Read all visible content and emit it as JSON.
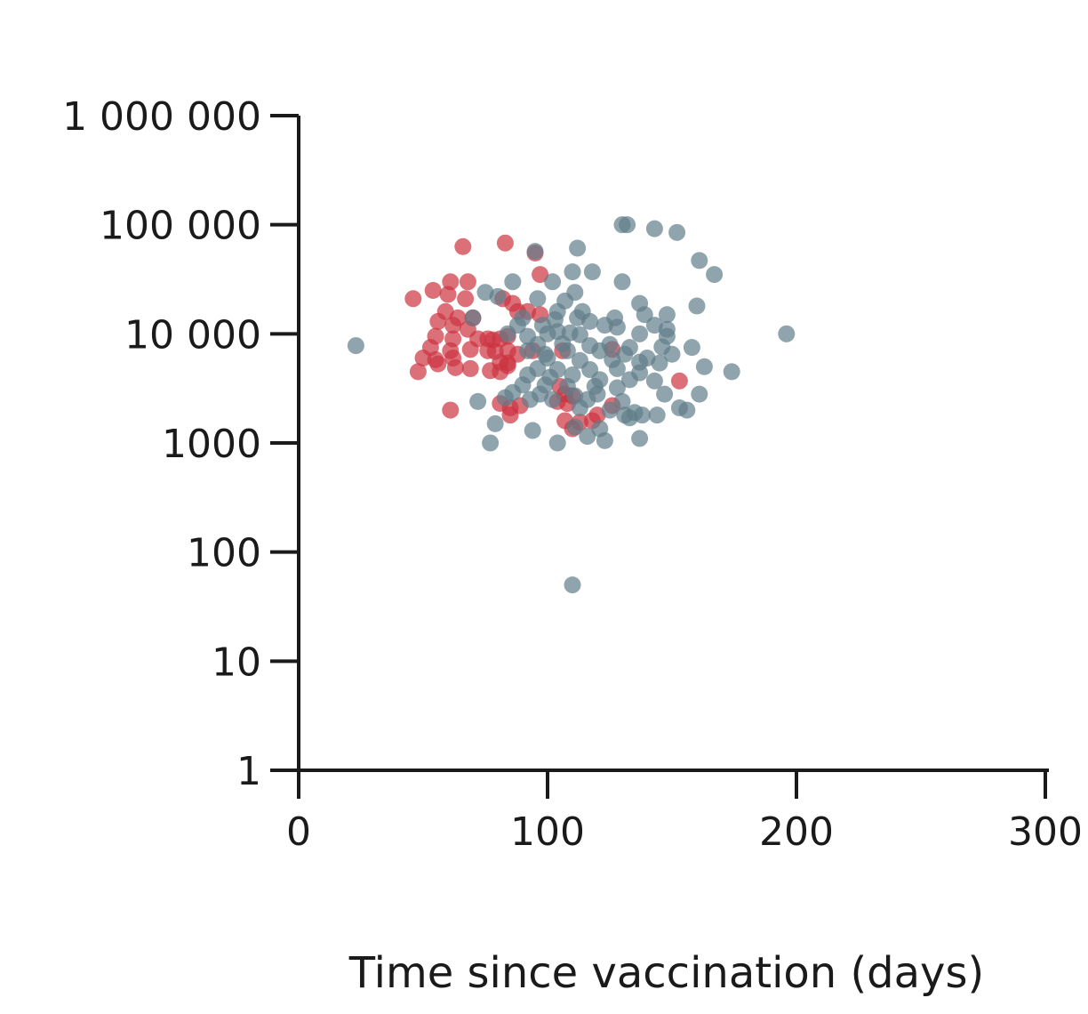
{
  "chart_data": {
    "type": "scatter",
    "title": "",
    "xlabel": "Time since vaccination (days)",
    "ylabel": "",
    "x_scale": "linear",
    "y_scale": "log",
    "xlim": [
      0,
      300
    ],
    "ylim": [
      1,
      1000000
    ],
    "x_ticks": [
      0,
      100,
      200,
      300
    ],
    "x_tick_labels": [
      "0",
      "100",
      "200",
      "300"
    ],
    "y_ticks": [
      1,
      10,
      100,
      1000,
      10000,
      100000,
      1000000
    ],
    "y_tick_labels": [
      "1",
      "10",
      "100",
      "1000",
      "10 000",
      "100 000",
      "1 000 000"
    ],
    "grid": false,
    "legend": "none",
    "marker_opacity": 0.7,
    "series": [
      {
        "color": "#CC3340",
        "points": [
          [
            66,
            63000
          ],
          [
            83,
            68000
          ],
          [
            95,
            55000
          ],
          [
            97,
            35000
          ],
          [
            61,
            30000
          ],
          [
            68,
            30000
          ],
          [
            46,
            21000
          ],
          [
            54,
            25000
          ],
          [
            60,
            23000
          ],
          [
            67,
            21000
          ],
          [
            82,
            21000
          ],
          [
            59,
            16000
          ],
          [
            64,
            14000
          ],
          [
            70,
            14000
          ],
          [
            86,
            19000
          ],
          [
            88,
            16000
          ],
          [
            92,
            16000
          ],
          [
            97,
            15000
          ],
          [
            56,
            13000
          ],
          [
            62,
            12000
          ],
          [
            68,
            11000
          ],
          [
            55,
            9500
          ],
          [
            62,
            9000
          ],
          [
            72,
            9000
          ],
          [
            76,
            9000
          ],
          [
            78,
            8800
          ],
          [
            81,
            9000
          ],
          [
            84,
            9500
          ],
          [
            53,
            7500
          ],
          [
            61,
            7000
          ],
          [
            69,
            7200
          ],
          [
            76,
            7000
          ],
          [
            79,
            6900
          ],
          [
            84,
            7000
          ],
          [
            88,
            6500
          ],
          [
            94,
            7000
          ],
          [
            106,
            7000
          ],
          [
            126,
            7200
          ],
          [
            50,
            6000
          ],
          [
            55,
            5800
          ],
          [
            62,
            6000
          ],
          [
            81,
            5500
          ],
          [
            84,
            5400
          ],
          [
            48,
            4500
          ],
          [
            56,
            5300
          ],
          [
            63,
            4900
          ],
          [
            69,
            4800
          ],
          [
            77,
            4600
          ],
          [
            81,
            4500
          ],
          [
            84,
            5100
          ],
          [
            153,
            3700
          ],
          [
            105,
            3300
          ],
          [
            107,
            2800
          ],
          [
            110,
            2700
          ],
          [
            81,
            2300
          ],
          [
            85,
            2100
          ],
          [
            89,
            2200
          ],
          [
            104,
            2400
          ],
          [
            108,
            2300
          ],
          [
            126,
            2200
          ],
          [
            61,
            2000
          ],
          [
            85,
            1800
          ],
          [
            120,
            1800
          ],
          [
            107,
            1600
          ],
          [
            113,
            1550
          ],
          [
            118,
            1600
          ],
          [
            110,
            1350
          ]
        ]
      },
      {
        "color": "#5F7D89",
        "points": [
          [
            23,
            7800
          ],
          [
            130,
            100000
          ],
          [
            132,
            100000
          ],
          [
            143,
            92000
          ],
          [
            152,
            85000
          ],
          [
            112,
            61000
          ],
          [
            95,
            57000
          ],
          [
            161,
            47000
          ],
          [
            110,
            37000
          ],
          [
            118,
            37000
          ],
          [
            167,
            35000
          ],
          [
            86,
            30000
          ],
          [
            102,
            30000
          ],
          [
            130,
            30000
          ],
          [
            75,
            24000
          ],
          [
            111,
            24000
          ],
          [
            80,
            22000
          ],
          [
            96,
            21000
          ],
          [
            107,
            20000
          ],
          [
            137,
            19000
          ],
          [
            160,
            18000
          ],
          [
            104,
            16000
          ],
          [
            114,
            16000
          ],
          [
            127,
            14000
          ],
          [
            139,
            15000
          ],
          [
            148,
            15000
          ],
          [
            70,
            14000
          ],
          [
            90,
            14000
          ],
          [
            103,
            13500
          ],
          [
            112,
            14000
          ],
          [
            117,
            13000
          ],
          [
            123,
            12000
          ],
          [
            143,
            12000
          ],
          [
            88,
            12000
          ],
          [
            98,
            12000
          ],
          [
            128,
            11500
          ],
          [
            137,
            10000
          ],
          [
            148,
            11000
          ],
          [
            84,
            10000
          ],
          [
            92,
            9500
          ],
          [
            100,
            10000
          ],
          [
            104,
            10500
          ],
          [
            113,
            9800
          ],
          [
            148,
            9500
          ],
          [
            109,
            10200
          ],
          [
            96,
            8000
          ],
          [
            106,
            8100
          ],
          [
            117,
            7800
          ],
          [
            125,
            8000
          ],
          [
            133,
            7500
          ],
          [
            146,
            7600
          ],
          [
            158,
            7500
          ],
          [
            92,
            7000
          ],
          [
            99,
            6500
          ],
          [
            108,
            7000
          ],
          [
            121,
            7000
          ],
          [
            131,
            6500
          ],
          [
            140,
            6000
          ],
          [
            150,
            6500
          ],
          [
            196,
            10000
          ],
          [
            100,
            6000
          ],
          [
            113,
            5700
          ],
          [
            126,
            5800
          ],
          [
            137,
            5500
          ],
          [
            145,
            5400
          ],
          [
            163,
            5000
          ],
          [
            174,
            4500
          ],
          [
            96,
            4800
          ],
          [
            104,
            4700
          ],
          [
            117,
            4700
          ],
          [
            128,
            4800
          ],
          [
            137,
            4400
          ],
          [
            92,
            4200
          ],
          [
            101,
            4000
          ],
          [
            110,
            4200
          ],
          [
            121,
            3800
          ],
          [
            133,
            3800
          ],
          [
            143,
            3700
          ],
          [
            90,
            3400
          ],
          [
            99,
            3400
          ],
          [
            108,
            3300
          ],
          [
            119,
            3300
          ],
          [
            128,
            3200
          ],
          [
            86,
            2900
          ],
          [
            97,
            2800
          ],
          [
            111,
            2700
          ],
          [
            120,
            2800
          ],
          [
            147,
            2800
          ],
          [
            161,
            2800
          ],
          [
            72,
            2400
          ],
          [
            83,
            2600
          ],
          [
            93,
            2500
          ],
          [
            102,
            2500
          ],
          [
            116,
            2500
          ],
          [
            130,
            2400
          ],
          [
            113,
            2100
          ],
          [
            125,
            2000
          ],
          [
            135,
            1900
          ],
          [
            153,
            2100
          ],
          [
            156,
            2000
          ],
          [
            131,
            1800
          ],
          [
            138,
            1800
          ],
          [
            144,
            1800
          ],
          [
            79,
            1500
          ],
          [
            133,
            1700
          ],
          [
            94,
            1300
          ],
          [
            111,
            1400
          ],
          [
            121,
            1350
          ],
          [
            77,
            1000
          ],
          [
            104,
            1000
          ],
          [
            116,
            1150
          ],
          [
            123,
            1050
          ],
          [
            137,
            1100
          ],
          [
            110,
            50
          ]
        ]
      }
    ]
  }
}
